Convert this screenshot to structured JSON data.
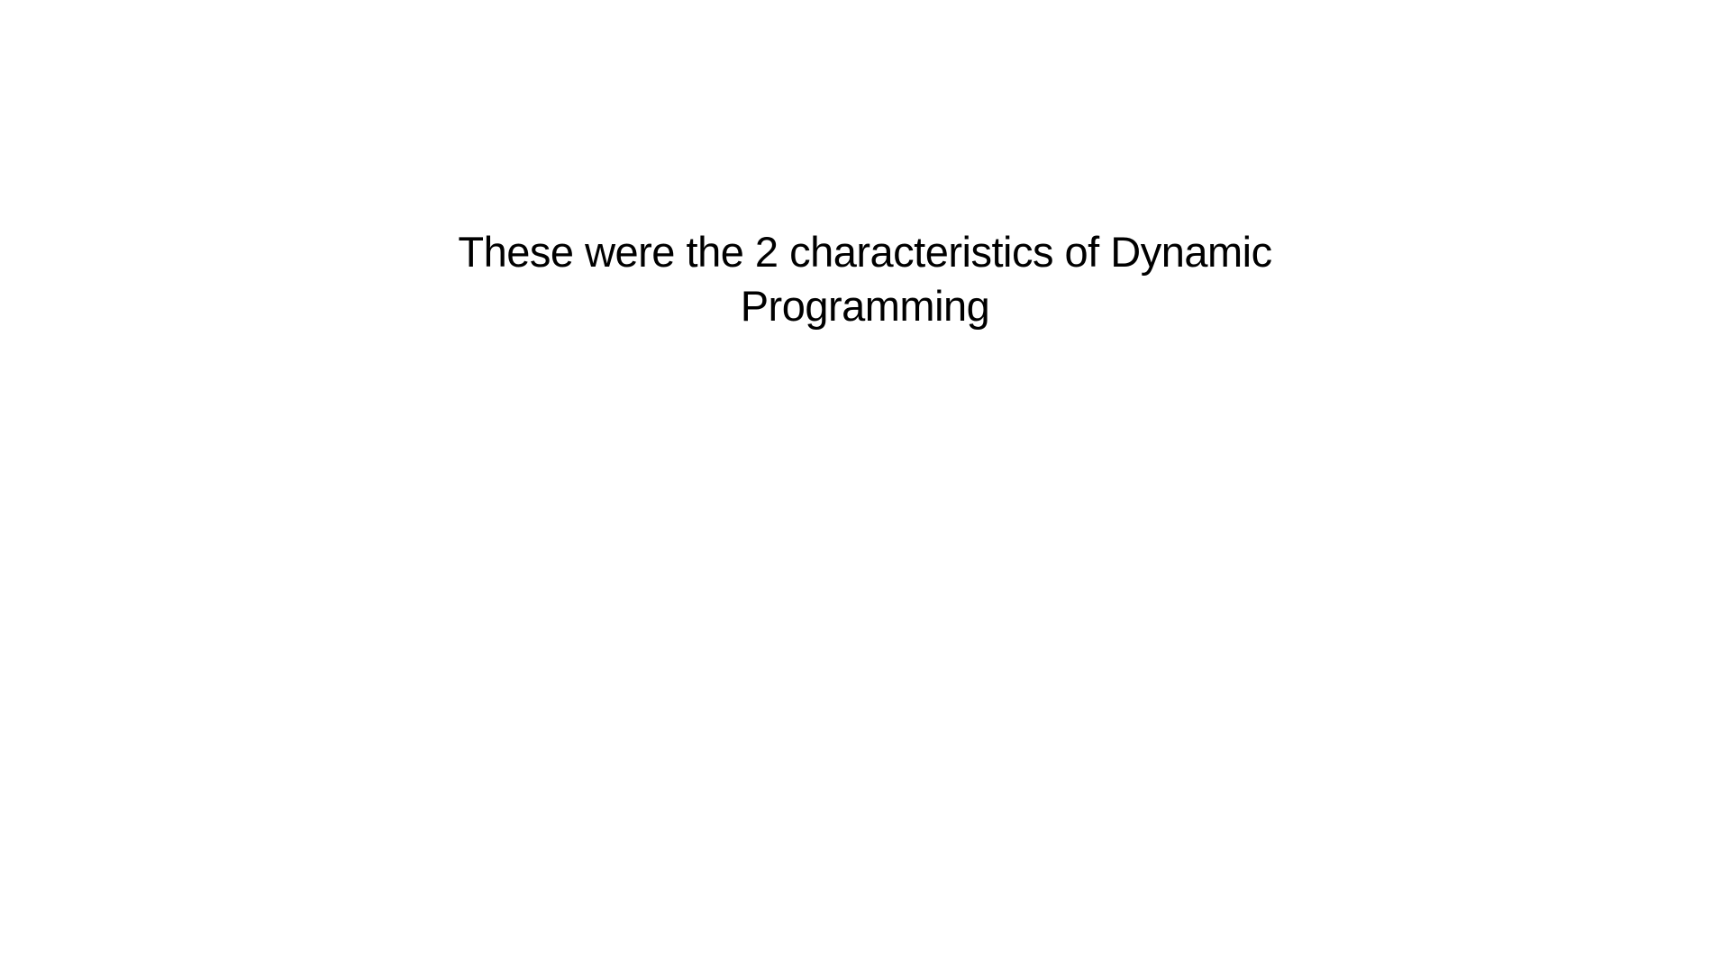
{
  "slide": {
    "title_lines": [
      "These were the 2 characteristics of Dynamic",
      "Programming"
    ]
  }
}
